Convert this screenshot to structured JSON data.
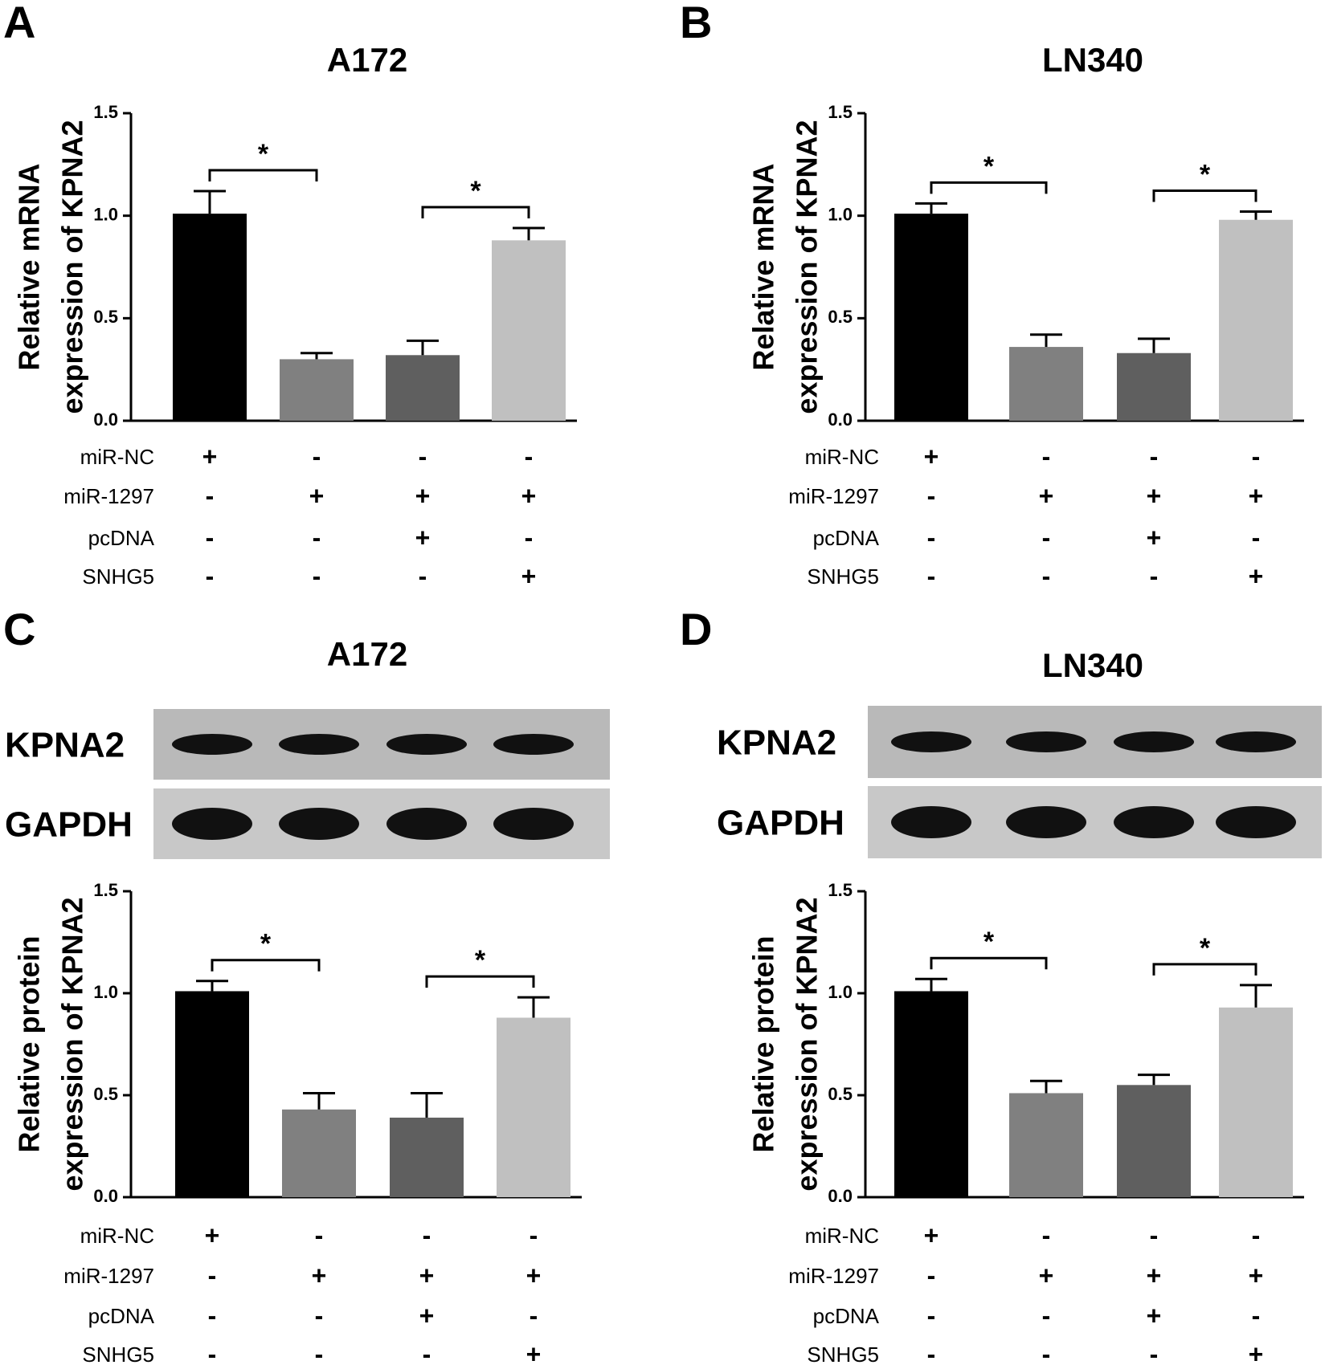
{
  "chart_data": [
    {
      "type": "bar",
      "panel": "A",
      "title": "A172",
      "ylabel": [
        "Relative mRNA",
        "expression of KPNA2"
      ],
      "values": [
        1.01,
        0.3,
        0.32,
        0.88
      ],
      "errors": [
        0.11,
        0.03,
        0.07,
        0.06
      ],
      "colors": [
        "#000000",
        "#808080",
        "#5f5f5f",
        "#c0c0c0"
      ],
      "ylim": [
        0,
        1.5
      ],
      "yticks": [
        {
          "value": 0,
          "label": "0.0"
        },
        0.5,
        {
          "value": 1,
          "label": "1.0"
        },
        1.5
      ],
      "significance": [
        {
          "pair": [
            0,
            1
          ],
          "label": "*"
        },
        {
          "pair": [
            2,
            3
          ],
          "label": "*"
        }
      ],
      "treatments": [
        {
          "name": "miR-NC",
          "signs": [
            "+",
            "-",
            "-",
            "-"
          ]
        },
        {
          "name": "miR-1297",
          "signs": [
            "-",
            "+",
            "+",
            "+"
          ]
        },
        {
          "name": "pcDNA",
          "signs": [
            "-",
            "-",
            "+",
            "-"
          ]
        },
        {
          "name": "SNHG5",
          "signs": [
            "-",
            "-",
            "-",
            "+"
          ]
        }
      ]
    },
    {
      "type": "bar",
      "panel": "B",
      "title": "LN340",
      "ylabel": [
        "Relative mRNA",
        "expression of KPNA2"
      ],
      "values": [
        1.01,
        0.36,
        0.33,
        0.98
      ],
      "errors": [
        0.05,
        0.06,
        0.07,
        0.04
      ],
      "colors": [
        "#000000",
        "#808080",
        "#5f5f5f",
        "#c0c0c0"
      ],
      "ylim": [
        0,
        1.5
      ],
      "yticks": [
        {
          "value": 0,
          "label": "0.0"
        },
        0.5,
        {
          "value": 1,
          "label": "1.0"
        },
        1.5
      ],
      "significance": [
        {
          "pair": [
            0,
            1
          ],
          "label": "*"
        },
        {
          "pair": [
            2,
            3
          ],
          "label": "*"
        }
      ],
      "treatments": [
        {
          "name": "miR-NC",
          "signs": [
            "+",
            "-",
            "-",
            "-"
          ]
        },
        {
          "name": "miR-1297",
          "signs": [
            "-",
            "+",
            "+",
            "+"
          ]
        },
        {
          "name": "pcDNA",
          "signs": [
            "-",
            "-",
            "+",
            "-"
          ]
        },
        {
          "name": "SNHG5",
          "signs": [
            "-",
            "-",
            "-",
            "+"
          ]
        }
      ]
    },
    {
      "type": "bar",
      "panel": "C",
      "title": "A172",
      "blot_labels": [
        "KPNA2",
        "GAPDH"
      ],
      "ylabel": [
        "Relative protein",
        "expression of KPNA2"
      ],
      "values": [
        1.01,
        0.43,
        0.39,
        0.88
      ],
      "errors": [
        0.05,
        0.08,
        0.12,
        0.1
      ],
      "colors": [
        "#000000",
        "#808080",
        "#5f5f5f",
        "#c0c0c0"
      ],
      "ylim": [
        0,
        1.5
      ],
      "yticks": [
        {
          "value": 0,
          "label": "0.0"
        },
        0.5,
        {
          "value": 1,
          "label": "1.0"
        },
        1.5
      ],
      "significance": [
        {
          "pair": [
            0,
            1
          ],
          "label": "*"
        },
        {
          "pair": [
            2,
            3
          ],
          "label": "*"
        }
      ],
      "treatments": [
        {
          "name": "miR-NC",
          "signs": [
            "+",
            "-",
            "-",
            "-"
          ]
        },
        {
          "name": "miR-1297",
          "signs": [
            "-",
            "+",
            "+",
            "+"
          ]
        },
        {
          "name": "pcDNA",
          "signs": [
            "-",
            "-",
            "+",
            "-"
          ]
        },
        {
          "name": "SNHG5",
          "signs": [
            "-",
            "-",
            "-",
            "+"
          ]
        }
      ]
    },
    {
      "type": "bar",
      "panel": "D",
      "title": "LN340",
      "blot_labels": [
        "KPNA2",
        "GAPDH"
      ],
      "ylabel": [
        "Relative protein",
        "expression of KPNA2"
      ],
      "values": [
        1.01,
        0.51,
        0.55,
        0.93
      ],
      "errors": [
        0.06,
        0.06,
        0.05,
        0.11
      ],
      "colors": [
        "#000000",
        "#808080",
        "#5f5f5f",
        "#c0c0c0"
      ],
      "ylim": [
        0,
        1.5
      ],
      "yticks": [
        {
          "value": 0,
          "label": "0.0"
        },
        0.5,
        {
          "value": 1,
          "label": "1.0"
        },
        1.5
      ],
      "significance": [
        {
          "pair": [
            0,
            1
          ],
          "label": "*"
        },
        {
          "pair": [
            2,
            3
          ],
          "label": "*"
        }
      ],
      "treatments": [
        {
          "name": "miR-NC",
          "signs": [
            "+",
            "-",
            "-",
            "-"
          ]
        },
        {
          "name": "miR-1297",
          "signs": [
            "-",
            "+",
            "+",
            "+"
          ]
        },
        {
          "name": "pcDNA",
          "signs": [
            "-",
            "-",
            "+",
            "-"
          ]
        },
        {
          "name": "SNHG5",
          "signs": [
            "-",
            "-",
            "-",
            "+"
          ]
        }
      ]
    }
  ]
}
